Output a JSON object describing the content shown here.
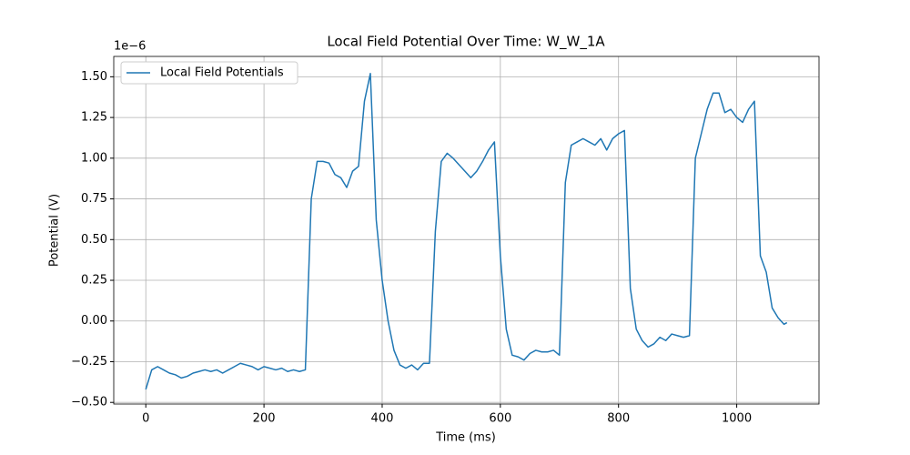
{
  "chart_data": {
    "type": "line",
    "title": "Local Field Potential Over Time: W_W_1A",
    "x_label": "Time (ms)",
    "y_label": "Potential (V)",
    "y_offset_label": "1e−6",
    "x": [
      0,
      10,
      20,
      30,
      40,
      50,
      60,
      70,
      80,
      90,
      100,
      110,
      120,
      130,
      140,
      150,
      160,
      170,
      180,
      190,
      200,
      210,
      220,
      230,
      240,
      250,
      260,
      270,
      280,
      290,
      300,
      310,
      320,
      330,
      340,
      350,
      360,
      370,
      380,
      390,
      400,
      410,
      420,
      430,
      440,
      450,
      460,
      470,
      480,
      490,
      500,
      510,
      520,
      530,
      540,
      550,
      560,
      570,
      580,
      590,
      600,
      610,
      620,
      630,
      640,
      650,
      660,
      670,
      680,
      690,
      700,
      710,
      720,
      730,
      740,
      750,
      760,
      770,
      780,
      790,
      800,
      810,
      820,
      830,
      840,
      850,
      860,
      870,
      880,
      890,
      900,
      910,
      920,
      930,
      940,
      950,
      960,
      970,
      980,
      990,
      1000,
      1010,
      1020,
      1030,
      1040,
      1050,
      1060,
      1070,
      1080,
      1085
    ],
    "series": [
      {
        "name": "Local Field Potentials",
        "color": "#1f77b4",
        "values": [
          -0.42,
          -0.3,
          -0.28,
          -0.3,
          -0.32,
          -0.33,
          -0.35,
          -0.34,
          -0.32,
          -0.31,
          -0.3,
          -0.31,
          -0.3,
          -0.32,
          -0.3,
          -0.28,
          -0.26,
          -0.27,
          -0.28,
          -0.3,
          -0.28,
          -0.29,
          -0.3,
          -0.29,
          -0.31,
          -0.3,
          -0.31,
          -0.3,
          0.75,
          0.98,
          0.98,
          0.97,
          0.9,
          0.88,
          0.82,
          0.92,
          0.95,
          1.35,
          1.52,
          0.62,
          0.25,
          0.0,
          -0.18,
          -0.27,
          -0.29,
          -0.27,
          -0.3,
          -0.26,
          -0.26,
          0.55,
          0.98,
          1.03,
          1.0,
          0.96,
          0.92,
          0.88,
          0.92,
          0.98,
          1.05,
          1.1,
          0.4,
          -0.05,
          -0.21,
          -0.22,
          -0.24,
          -0.2,
          -0.18,
          -0.19,
          -0.19,
          -0.18,
          -0.21,
          0.85,
          1.08,
          1.1,
          1.12,
          1.1,
          1.08,
          1.12,
          1.05,
          1.12,
          1.15,
          1.17,
          0.2,
          -0.05,
          -0.12,
          -0.16,
          -0.14,
          -0.1,
          -0.12,
          -0.08,
          -0.09,
          -0.1,
          -0.09,
          1.0,
          1.15,
          1.3,
          1.4,
          1.4,
          1.28,
          1.3,
          1.25,
          1.22,
          1.3,
          1.35,
          0.4,
          0.3,
          0.08,
          0.02,
          -0.02,
          -0.01
        ]
      }
    ],
    "xlim": [
      -54.25,
      1139.25
    ],
    "xticks": [
      0,
      200,
      400,
      600,
      800,
      1000
    ],
    "ylim": [
      -0.51,
      1.625
    ],
    "yticks": [
      {
        "value": -0.5,
        "label": "−0.50"
      },
      {
        "value": -0.25,
        "label": "−0.25"
      },
      {
        "value": 0,
        "label": "0.00"
      },
      {
        "value": 0.25,
        "label": "0.25"
      },
      {
        "value": 0.5,
        "label": "0.50"
      },
      {
        "value": 0.75,
        "label": "0.75"
      },
      {
        "value": 1.0,
        "label": "1.00"
      },
      {
        "value": 1.25,
        "label": "1.25"
      },
      {
        "value": 1.5,
        "label": "1.50"
      }
    ],
    "grid": true,
    "legend": "upper left"
  }
}
